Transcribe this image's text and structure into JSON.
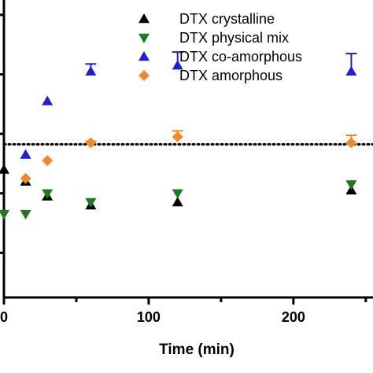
{
  "chart_data": {
    "type": "scatter",
    "title": "",
    "xlabel": "Time (min)",
    "ylabel": "",
    "xlim": [
      0,
      255
    ],
    "ylim": [
      0,
      1
    ],
    "x_ticks": [
      0,
      100,
      200
    ],
    "x_tick_labels": [
      "0",
      "100",
      "200"
    ],
    "x_minor_ticks": [
      50,
      150,
      250
    ],
    "y_axis_tick_fractions": [
      0.15,
      0.35,
      0.55,
      0.75,
      0.95
    ],
    "reference_line": {
      "y": 0.515,
      "style": "dotted",
      "color": "#000000"
    },
    "legend": {
      "position": "top-right"
    },
    "series": [
      {
        "name": "DTX crystalline",
        "marker": "triangle-up",
        "color": "#000000",
        "points": [
          {
            "x": 0,
            "y": 0.43,
            "err": 0
          },
          {
            "x": 15,
            "y": 0.39,
            "err": 0
          },
          {
            "x": 30,
            "y": 0.34,
            "err": 0
          },
          {
            "x": 60,
            "y": 0.31,
            "err": 0
          },
          {
            "x": 120,
            "y": 0.32,
            "err": 0
          },
          {
            "x": 240,
            "y": 0.36,
            "err": 0
          }
        ]
      },
      {
        "name": "DTX physical mix",
        "marker": "triangle-down",
        "color": "#1e7a1e",
        "points": [
          {
            "x": 0,
            "y": 0.28,
            "err": 0
          },
          {
            "x": 15,
            "y": 0.28,
            "err": 0
          },
          {
            "x": 30,
            "y": 0.35,
            "err": 0
          },
          {
            "x": 60,
            "y": 0.32,
            "err": 0
          },
          {
            "x": 120,
            "y": 0.35,
            "err": 0
          },
          {
            "x": 240,
            "y": 0.38,
            "err": 0
          }
        ]
      },
      {
        "name": "DTX co-amorphous",
        "marker": "triangle-up",
        "color": "#1f1fd0",
        "points": [
          {
            "x": 15,
            "y": 0.48,
            "err": 0
          },
          {
            "x": 30,
            "y": 0.66,
            "err": 0
          },
          {
            "x": 60,
            "y": 0.76,
            "err": 0.025
          },
          {
            "x": 120,
            "y": 0.78,
            "err": 0.045
          },
          {
            "x": 240,
            "y": 0.76,
            "err": 0.06
          }
        ]
      },
      {
        "name": "DTX amorphous",
        "marker": "diamond",
        "color": "#f0892a",
        "points": [
          {
            "x": 15,
            "y": 0.4,
            "err": 0
          },
          {
            "x": 30,
            "y": 0.46,
            "err": 0
          },
          {
            "x": 60,
            "y": 0.52,
            "err": 0.005
          },
          {
            "x": 120,
            "y": 0.54,
            "err": 0.02
          },
          {
            "x": 240,
            "y": 0.52,
            "err": 0.025
          }
        ]
      }
    ]
  }
}
